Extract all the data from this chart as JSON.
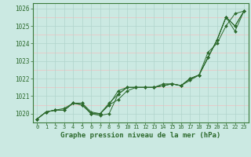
{
  "title": "Graphe pression niveau de la mer (hPa)",
  "bg_color": "#cbe9e2",
  "plot_bg": "#cbe9e2",
  "grid_color_major": "#b0d4cc",
  "grid_color_minor": "#f0c0c0",
  "line_color": "#2d6a2d",
  "xlim": [
    -0.5,
    23.5
  ],
  "ylim": [
    1019.5,
    1026.3
  ],
  "yticks": [
    1020,
    1021,
    1022,
    1023,
    1024,
    1025,
    1026
  ],
  "xticks": [
    0,
    1,
    2,
    3,
    4,
    5,
    6,
    7,
    8,
    9,
    10,
    11,
    12,
    13,
    14,
    15,
    16,
    17,
    18,
    19,
    20,
    21,
    22,
    23
  ],
  "series": [
    [
      1019.7,
      1020.1,
      1020.2,
      1020.2,
      1020.6,
      1020.6,
      1020.0,
      1019.9,
      1020.0,
      1021.1,
      1021.5,
      1021.5,
      1021.5,
      1021.5,
      1021.6,
      1021.7,
      1021.6,
      1021.9,
      1022.2,
      1023.5,
      1024.0,
      1025.0,
      1025.7,
      1025.85
    ],
    [
      1019.7,
      1020.1,
      1020.2,
      1020.2,
      1020.6,
      1020.5,
      1020.0,
      1020.0,
      1020.5,
      1020.8,
      1021.3,
      1021.5,
      1021.5,
      1021.5,
      1021.6,
      1021.7,
      1021.6,
      1022.0,
      1022.2,
      1023.2,
      1024.2,
      1025.5,
      1024.7,
      1025.85
    ],
    [
      1019.7,
      1020.1,
      1020.2,
      1020.2,
      1020.6,
      1020.5,
      1020.0,
      1020.0,
      1020.5,
      1021.3,
      1021.5,
      1021.5,
      1021.5,
      1021.5,
      1021.6,
      1021.7,
      1021.6,
      1022.0,
      1022.2,
      1023.2,
      1024.2,
      1025.5,
      1025.0,
      1025.85
    ],
    [
      1019.7,
      1020.1,
      1020.2,
      1020.3,
      1020.6,
      1020.6,
      1020.1,
      1020.0,
      1020.6,
      1021.1,
      1021.5,
      1021.5,
      1021.5,
      1021.5,
      1021.7,
      1021.7,
      1021.6,
      1022.0,
      1022.2,
      1023.2,
      1024.2,
      1025.5,
      1025.0,
      1025.85
    ]
  ]
}
